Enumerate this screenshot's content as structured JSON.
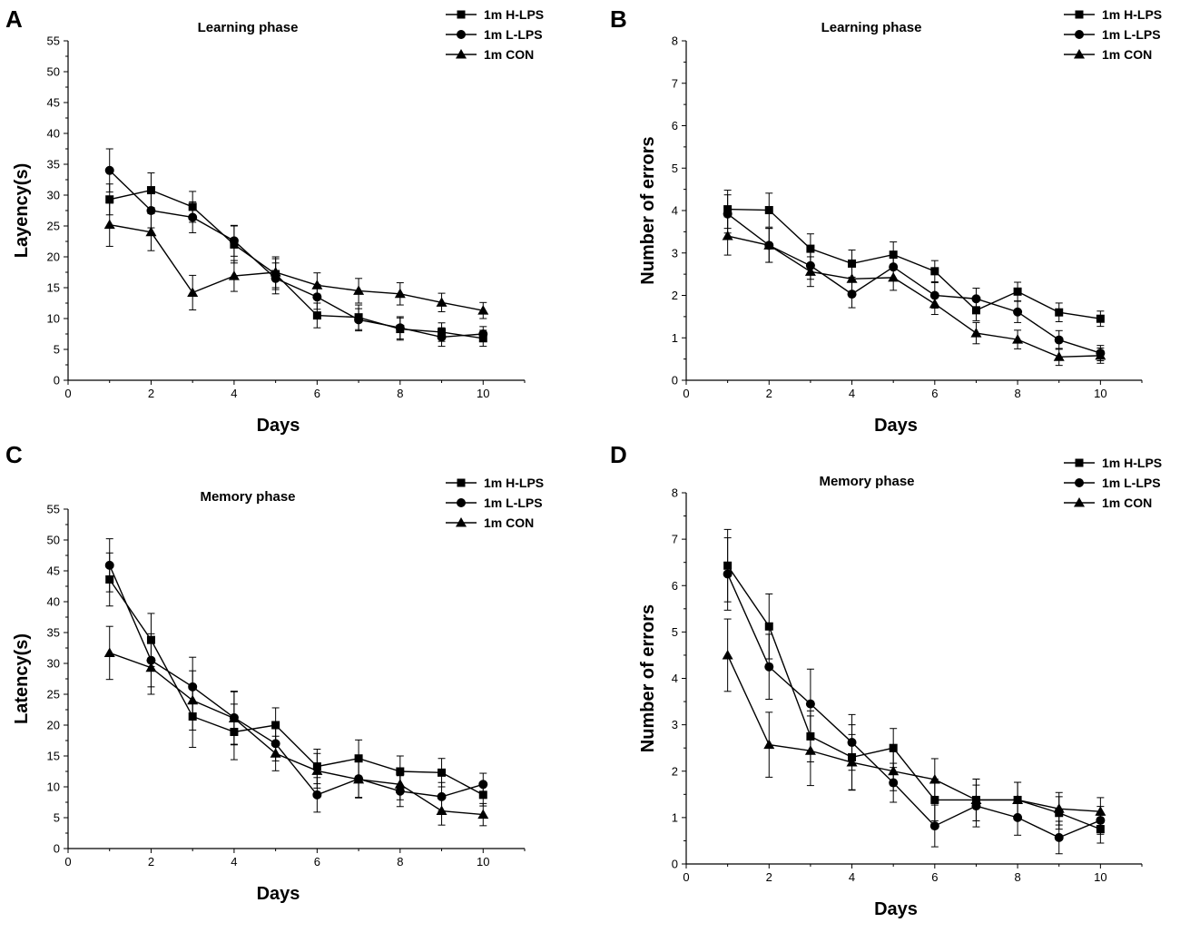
{
  "chart_data": [
    {
      "panel": "A",
      "type": "line",
      "title": "Learning phase",
      "xlabel": "Days",
      "ylabel": "Layency(s)",
      "xlim": [
        0,
        11
      ],
      "ylim": [
        0,
        55
      ],
      "xticks": [
        0,
        2,
        4,
        6,
        8,
        10
      ],
      "yticks": [
        0,
        5,
        10,
        15,
        20,
        25,
        30,
        35,
        40,
        45,
        50,
        55
      ],
      "x": [
        1,
        2,
        3,
        4,
        5,
        6,
        7,
        8,
        9,
        10
      ],
      "legend_position": "top-right",
      "series": [
        {
          "name": "1m H-LPS",
          "marker": "square",
          "values": [
            29.3,
            30.8,
            28.1,
            22.0,
            17.2,
            10.5,
            10.2,
            8.3,
            7.8,
            6.8
          ],
          "errors": [
            2.5,
            2.8,
            2.5,
            3.0,
            2.5,
            2.0,
            2.0,
            1.8,
            1.5,
            1.3
          ]
        },
        {
          "name": "1m L-LPS",
          "marker": "circle",
          "values": [
            34.0,
            27.5,
            26.4,
            22.6,
            16.5,
            13.5,
            9.8,
            8.5,
            7.0,
            7.5
          ],
          "errors": [
            3.5,
            2.8,
            2.5,
            2.5,
            2.5,
            2.0,
            1.8,
            1.8,
            1.5,
            1.2
          ]
        },
        {
          "name": "1m CON",
          "marker": "triangle",
          "values": [
            25.2,
            24.0,
            14.2,
            16.9,
            17.5,
            15.4,
            14.5,
            14.0,
            12.6,
            11.3
          ],
          "errors": [
            3.5,
            3.0,
            2.8,
            2.5,
            2.5,
            2.0,
            2.0,
            1.8,
            1.5,
            1.3
          ]
        }
      ]
    },
    {
      "panel": "B",
      "type": "line",
      "title": "Learning phase",
      "xlabel": "Days",
      "ylabel": "Number of errors",
      "xlim": [
        0,
        11
      ],
      "ylim": [
        0,
        8
      ],
      "xticks": [
        0,
        2,
        4,
        6,
        8,
        10
      ],
      "yticks": [
        0,
        1,
        2,
        3,
        4,
        5,
        6,
        7,
        8
      ],
      "x": [
        1,
        2,
        3,
        4,
        5,
        6,
        7,
        8,
        9,
        10
      ],
      "legend_position": "top-right",
      "series": [
        {
          "name": "1m H-LPS",
          "marker": "square",
          "values": [
            4.03,
            4.01,
            3.1,
            2.75,
            2.96,
            2.57,
            1.65,
            2.09,
            1.6,
            1.45
          ],
          "errors": [
            0.45,
            0.4,
            0.35,
            0.32,
            0.3,
            0.25,
            0.25,
            0.22,
            0.22,
            0.18
          ]
        },
        {
          "name": "1m L-LPS",
          "marker": "circle",
          "values": [
            3.92,
            3.18,
            2.7,
            2.03,
            2.67,
            2.0,
            1.92,
            1.61,
            0.95,
            0.64
          ],
          "errors": [
            0.45,
            0.4,
            0.32,
            0.32,
            0.3,
            0.3,
            0.25,
            0.25,
            0.22,
            0.18
          ]
        },
        {
          "name": "1m CON",
          "marker": "triangle",
          "values": [
            3.4,
            3.18,
            2.56,
            2.39,
            2.42,
            1.8,
            1.11,
            0.96,
            0.55,
            0.58
          ],
          "errors": [
            0.45,
            0.4,
            0.35,
            0.3,
            0.3,
            0.25,
            0.25,
            0.22,
            0.2,
            0.18
          ]
        }
      ]
    },
    {
      "panel": "C",
      "type": "line",
      "title": "Memory phase",
      "xlabel": "Days",
      "ylabel": "Latency(s)",
      "xlim": [
        0,
        11
      ],
      "ylim": [
        0,
        55
      ],
      "xticks": [
        0,
        2,
        4,
        6,
        8,
        10
      ],
      "yticks": [
        0,
        5,
        10,
        15,
        20,
        25,
        30,
        35,
        40,
        45,
        50,
        55
      ],
      "x": [
        1,
        2,
        3,
        4,
        5,
        6,
        7,
        8,
        9,
        10
      ],
      "legend_position": "top-right",
      "series": [
        {
          "name": "1m H-LPS",
          "marker": "square",
          "values": [
            43.6,
            33.8,
            21.4,
            18.9,
            20.0,
            13.3,
            14.6,
            12.5,
            12.3,
            8.7
          ],
          "errors": [
            4.3,
            4.3,
            5.0,
            4.5,
            2.8,
            2.8,
            3.0,
            2.5,
            2.3,
            1.8
          ]
        },
        {
          "name": "1m L-LPS",
          "marker": "circle",
          "values": [
            45.9,
            30.5,
            26.2,
            21.2,
            17.0,
            8.7,
            11.3,
            9.3,
            8.4,
            10.4
          ],
          "errors": [
            4.3,
            4.3,
            4.8,
            4.3,
            2.8,
            2.8,
            3.0,
            2.5,
            2.3,
            1.8
          ]
        },
        {
          "name": "1m CON",
          "marker": "triangle",
          "values": [
            31.7,
            29.3,
            24.0,
            21.1,
            15.4,
            12.6,
            11.2,
            10.4,
            6.1,
            5.5
          ],
          "errors": [
            4.3,
            4.3,
            4.8,
            4.3,
            2.8,
            2.8,
            3.0,
            2.5,
            2.3,
            1.8
          ]
        }
      ]
    },
    {
      "panel": "D",
      "type": "line",
      "title": "Memory phase",
      "xlabel": "Days",
      "ylabel": "Number of errors",
      "xlim": [
        0,
        11
      ],
      "ylim": [
        0,
        8
      ],
      "xticks": [
        0,
        2,
        4,
        6,
        8,
        10
      ],
      "yticks": [
        0,
        1,
        2,
        3,
        4,
        5,
        6,
        7,
        8
      ],
      "x": [
        1,
        2,
        3,
        4,
        5,
        6,
        7,
        8,
        9,
        10
      ],
      "legend_position": "top-right",
      "series": [
        {
          "name": "1m H-LPS",
          "marker": "square",
          "values": [
            6.43,
            5.12,
            2.75,
            2.3,
            2.5,
            1.38,
            1.38,
            1.38,
            1.1,
            0.75
          ],
          "errors": [
            0.78,
            0.7,
            0.55,
            0.7,
            0.42,
            0.45,
            0.45,
            0.38,
            0.35,
            0.3
          ]
        },
        {
          "name": "1m L-LPS",
          "marker": "circle",
          "values": [
            6.25,
            4.25,
            3.45,
            2.62,
            1.75,
            0.82,
            1.25,
            1.0,
            0.57,
            0.94
          ],
          "errors": [
            0.78,
            0.7,
            0.75,
            0.6,
            0.42,
            0.45,
            0.45,
            0.38,
            0.35,
            0.3
          ]
        },
        {
          "name": "1m CON",
          "marker": "triangle",
          "values": [
            4.5,
            2.57,
            2.44,
            2.19,
            2.0,
            1.82,
            1.38,
            1.38,
            1.19,
            1.13
          ],
          "errors": [
            0.78,
            0.7,
            0.75,
            0.6,
            0.42,
            0.45,
            0.45,
            0.38,
            0.35,
            0.3
          ]
        }
      ]
    }
  ]
}
